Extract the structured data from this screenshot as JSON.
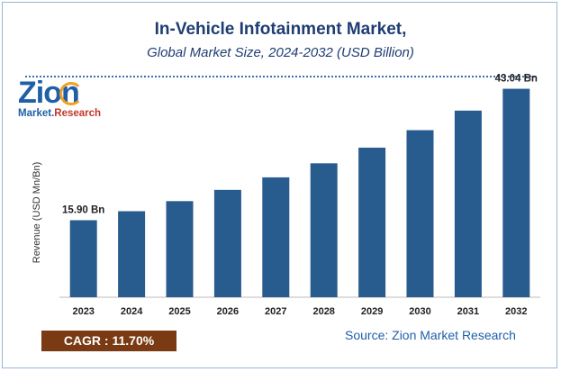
{
  "header": {
    "title": "In-Vehicle Infotainment Market,",
    "subtitle": "Global Market Size, 2024-2032 (USD Billion)"
  },
  "logo": {
    "word": "Zion",
    "sub_a": "Market.",
    "sub_b": "Research"
  },
  "chart_data": {
    "type": "bar",
    "title": "In-Vehicle Infotainment Market,",
    "subtitle": "Global Market Size, 2024-2032 (USD Billion)",
    "xlabel": "",
    "ylabel": "Revenue (USD Mn/Bn)",
    "categories": [
      "2023",
      "2024",
      "2025",
      "2026",
      "2027",
      "2028",
      "2029",
      "2030",
      "2031",
      "2032"
    ],
    "values": [
      15.9,
      17.76,
      19.84,
      22.16,
      24.75,
      27.65,
      30.88,
      34.49,
      38.53,
      43.04
    ],
    "data_labels": [
      {
        "index": 0,
        "text": "15.90 Bn"
      },
      {
        "index": 9,
        "text": "43.04 Bn"
      }
    ],
    "ylim": [
      0,
      45
    ],
    "grid": false,
    "bar_color": "#285c8f"
  },
  "footer": {
    "cagr": "CAGR :  11.70%",
    "source": "Source: Zion Market Research"
  },
  "colors": {
    "title": "#1f3d73",
    "accent": "#1f5fa8",
    "cagr_bg": "#7a3a14"
  }
}
